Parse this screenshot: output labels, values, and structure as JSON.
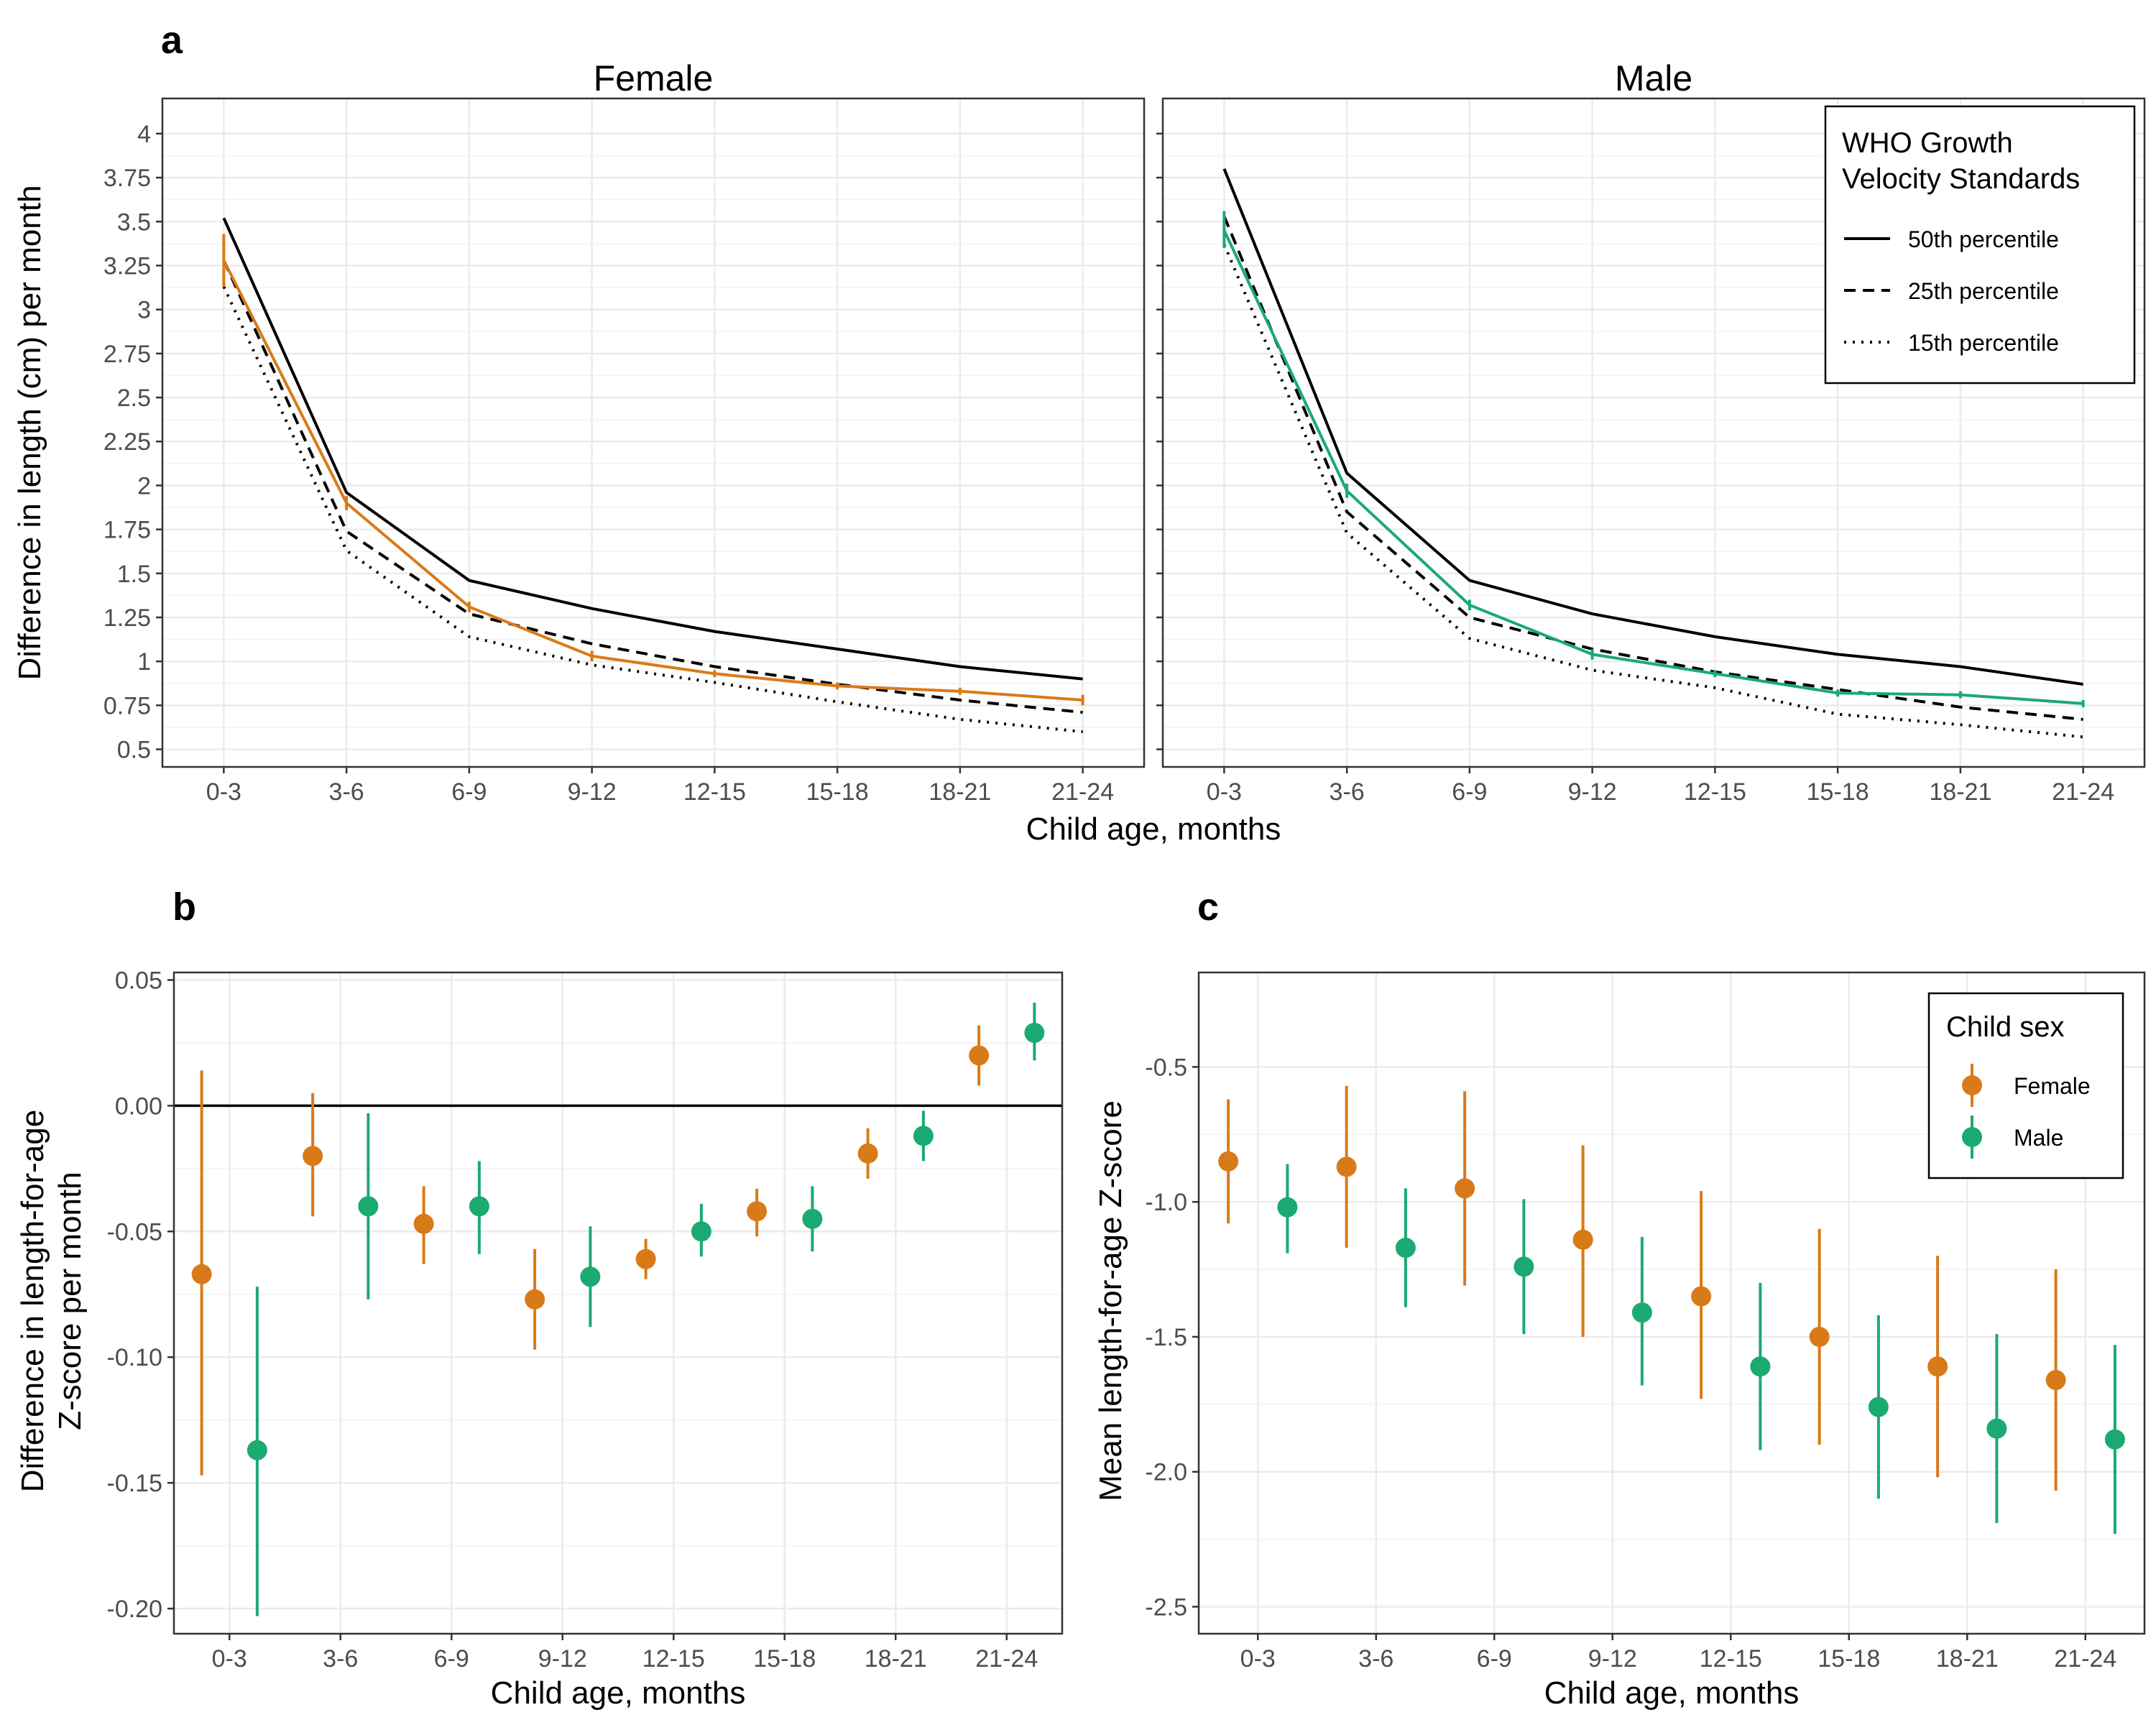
{
  "figure": {
    "panels": {
      "a": "a",
      "b": "b",
      "c": "c"
    },
    "legend_a": {
      "title_line1": "WHO Growth",
      "title_line2": "Velocity Standards",
      "items": [
        "50th percentile",
        "25th percentile",
        "15th percentile"
      ]
    },
    "legend_c": {
      "title": "Child sex",
      "items": [
        "Female",
        "Male"
      ]
    }
  },
  "chart_data": [
    {
      "panel": "a",
      "type": "line",
      "facets": [
        "Female",
        "Male"
      ],
      "xlabel": "Child age, months",
      "ylabel": "Difference in length (cm) per month",
      "categories": [
        "0-3",
        "3-6",
        "6-9",
        "9-12",
        "12-15",
        "15-18",
        "18-21",
        "21-24"
      ],
      "ylim": [
        0.4,
        4.2
      ],
      "yticks": [
        "0.5",
        "0.75",
        "1",
        "1.25",
        "1.5",
        "1.75",
        "2",
        "2.25",
        "2.5",
        "2.75",
        "3",
        "3.25",
        "3.5",
        "3.75",
        "4"
      ],
      "grid": true,
      "legend_position": "top-right",
      "reference_series": [
        {
          "name": "50th percentile",
          "style": "solid",
          "Female": [
            3.52,
            1.96,
            1.46,
            1.3,
            1.17,
            1.07,
            0.97,
            0.9
          ],
          "Male": [
            3.8,
            2.07,
            1.46,
            1.27,
            1.14,
            1.04,
            0.97,
            0.87
          ]
        },
        {
          "name": "25th percentile",
          "style": "dashed",
          "Female": [
            3.28,
            1.74,
            1.27,
            1.1,
            0.97,
            0.87,
            0.78,
            0.71
          ],
          "Male": [
            3.53,
            1.85,
            1.25,
            1.07,
            0.94,
            0.84,
            0.74,
            0.67
          ]
        },
        {
          "name": "15th percentile",
          "style": "dotted",
          "Female": [
            3.13,
            1.63,
            1.14,
            0.98,
            0.88,
            0.77,
            0.67,
            0.6
          ],
          "Male": [
            3.37,
            1.73,
            1.13,
            0.95,
            0.85,
            0.7,
            0.64,
            0.57
          ]
        }
      ],
      "observed": {
        "Female": {
          "color": "#D97A18",
          "values": [
            3.28,
            1.9,
            1.31,
            1.03,
            0.93,
            0.86,
            0.83,
            0.78
          ],
          "lower": [
            3.13,
            1.86,
            1.28,
            1.0,
            0.91,
            0.84,
            0.81,
            0.75
          ],
          "upper": [
            3.43,
            1.94,
            1.34,
            1.06,
            0.95,
            0.88,
            0.85,
            0.81
          ]
        },
        "Male": {
          "color": "#1AAA72",
          "values": [
            3.45,
            1.97,
            1.32,
            1.04,
            0.93,
            0.82,
            0.81,
            0.76
          ],
          "lower": [
            3.35,
            1.93,
            1.29,
            1.01,
            0.91,
            0.8,
            0.79,
            0.74
          ],
          "upper": [
            3.56,
            2.01,
            1.35,
            1.07,
            0.95,
            0.84,
            0.83,
            0.78
          ]
        }
      }
    },
    {
      "panel": "b",
      "type": "scatter",
      "xlabel": "Child age, months",
      "ylabel_line1": "Difference in length-for-age",
      "ylabel_line2": "Z-score per month",
      "categories": [
        "0-3",
        "3-6",
        "6-9",
        "9-12",
        "12-15",
        "15-18",
        "18-21",
        "21-24"
      ],
      "ylim": [
        -0.21,
        0.053
      ],
      "yticks": [
        "-0.20",
        "-0.15",
        "-0.10",
        "-0.05",
        "0.00",
        "0.05"
      ],
      "reference_line": 0,
      "grid": true,
      "series": [
        {
          "name": "Female",
          "color": "#D97A18",
          "values": [
            -0.067,
            -0.02,
            -0.047,
            -0.077,
            -0.061,
            -0.042,
            -0.019,
            0.02
          ],
          "lower": [
            -0.147,
            -0.044,
            -0.063,
            -0.097,
            -0.069,
            -0.052,
            -0.029,
            0.008
          ],
          "upper": [
            0.014,
            0.005,
            -0.032,
            -0.057,
            -0.053,
            -0.033,
            -0.009,
            0.032
          ]
        },
        {
          "name": "Male",
          "color": "#1AAA72",
          "values": [
            -0.137,
            -0.04,
            -0.04,
            -0.068,
            -0.05,
            -0.045,
            -0.012,
            0.029
          ],
          "lower": [
            -0.203,
            -0.077,
            -0.059,
            -0.088,
            -0.06,
            -0.058,
            -0.022,
            0.018
          ],
          "upper": [
            -0.072,
            -0.003,
            -0.022,
            -0.048,
            -0.039,
            -0.032,
            -0.002,
            0.041
          ]
        }
      ]
    },
    {
      "panel": "c",
      "type": "scatter",
      "xlabel": "Child age, months",
      "ylabel": "Mean length-for-age Z-score",
      "categories": [
        "0-3",
        "3-6",
        "6-9",
        "9-12",
        "12-15",
        "15-18",
        "18-21",
        "21-24"
      ],
      "ylim": [
        -2.6,
        -0.15
      ],
      "yticks": [
        "-0.5",
        "-1.0",
        "-1.5",
        "-2.0",
        "-2.5"
      ],
      "grid": true,
      "legend_position": "top-right",
      "series": [
        {
          "name": "Female",
          "color": "#D97A18",
          "values": [
            -0.85,
            -0.87,
            -0.95,
            -1.14,
            -1.35,
            -1.5,
            -1.61,
            -1.66
          ],
          "lower": [
            -1.08,
            -1.17,
            -1.31,
            -1.5,
            -1.73,
            -1.9,
            -2.02,
            -2.07
          ],
          "upper": [
            -0.62,
            -0.57,
            -0.59,
            -0.79,
            -0.96,
            -1.1,
            -1.2,
            -1.25
          ]
        },
        {
          "name": "Male",
          "color": "#1AAA72",
          "values": [
            -1.02,
            -1.17,
            -1.24,
            -1.41,
            -1.61,
            -1.76,
            -1.84,
            -1.88
          ],
          "lower": [
            -1.19,
            -1.39,
            -1.49,
            -1.68,
            -1.92,
            -2.1,
            -2.19,
            -2.23
          ],
          "upper": [
            -0.86,
            -0.95,
            -0.99,
            -1.13,
            -1.3,
            -1.42,
            -1.49,
            -1.53
          ]
        }
      ]
    }
  ]
}
